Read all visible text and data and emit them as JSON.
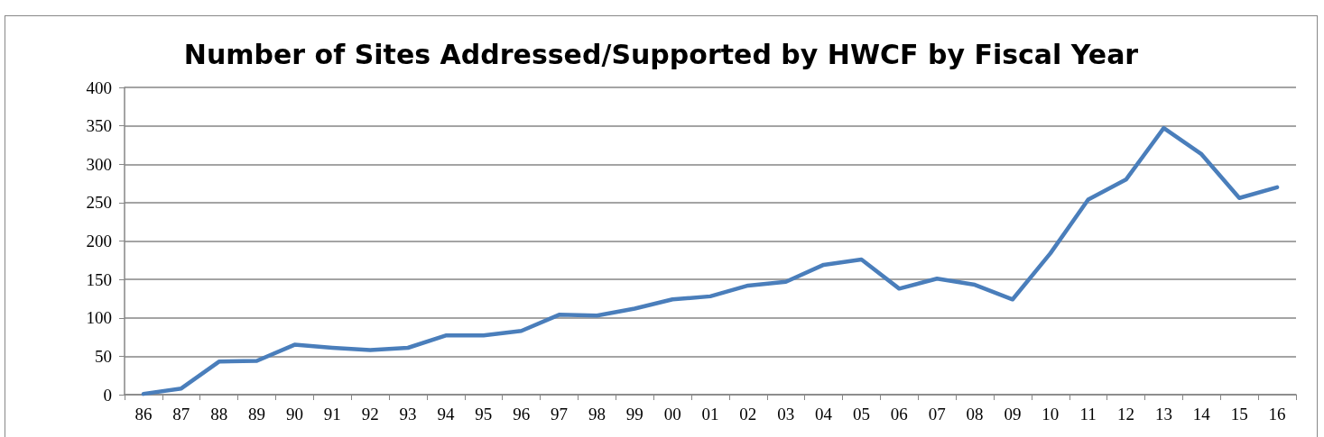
{
  "chart_data": {
    "type": "line",
    "title": "Number of Sites Addressed/Supported by HWCF by Fiscal Year",
    "categories": [
      "86",
      "87",
      "88",
      "89",
      "90",
      "91",
      "92",
      "93",
      "94",
      "95",
      "96",
      "97",
      "98",
      "99",
      "00",
      "01",
      "02",
      "03",
      "04",
      "05",
      "06",
      "07",
      "08",
      "09",
      "10",
      "11",
      "12",
      "13",
      "14",
      "15",
      "16"
    ],
    "series": [
      {
        "color": "#4a7ebb",
        "values": [
          1,
          8,
          43,
          44,
          65,
          61,
          58,
          61,
          77,
          77,
          83,
          104,
          103,
          112,
          124,
          128,
          142,
          147,
          169,
          176,
          138,
          151,
          143,
          124,
          184,
          254,
          280,
          347,
          313,
          256,
          270
        ]
      }
    ],
    "ylim": [
      0,
      400
    ],
    "yticks": [
      0,
      50,
      100,
      150,
      200,
      250,
      300,
      350,
      400
    ],
    "grid": "y",
    "marker": "none",
    "line_style": "solid"
  }
}
